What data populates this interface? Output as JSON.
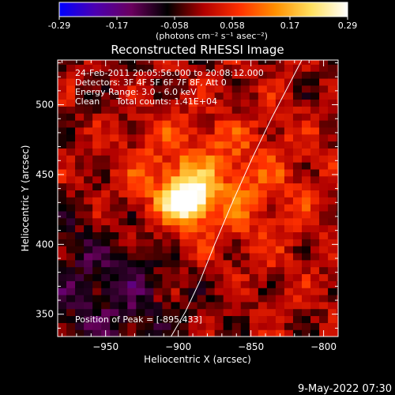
{
  "title": "Reconstructed RHESSI Image",
  "colorbar": {
    "ticks": [
      "-0.29",
      "-0.17",
      "-0.058",
      "0.058",
      "0.17",
      "0.29"
    ],
    "range": [
      -0.29,
      0.29
    ],
    "units": "(photons cm⁻² s⁻¹ asec⁻²)",
    "colormap": [
      "#0000ff",
      "#4c00b0",
      "#6a005e",
      "#000000",
      "#b00000",
      "#ff3000",
      "#ff9000",
      "#ffe060",
      "#ffffff"
    ]
  },
  "info_lines": [
    "24-Feb-2011 20:05:56.000 to 20:08:12.000",
    "Detectors: 3F 4F 5F 6F 7F 8F, Att 0",
    "Energy Range: 3.0 - 6.0 keV",
    "Clean      Total counts: 1.41E+04"
  ],
  "peak_label": "Position of Peak = [-895,433]",
  "footer_date": "9-May-2022 07:30",
  "chart_data": {
    "type": "heatmap",
    "title": "Reconstructed RHESSI Image",
    "xlabel": "Heliocentric X (arcsec)",
    "ylabel": "Heliocentric Y (arcsec)",
    "xlim": [
      -983,
      -790
    ],
    "ylim": [
      334,
      532
    ],
    "x_ticks": [
      -950,
      -900,
      -850,
      -800
    ],
    "y_ticks": [
      350,
      400,
      450,
      500
    ],
    "x_tick_labels": [
      "−950",
      "−900",
      "−850",
      "−800"
    ],
    "y_tick_labels": [
      "350",
      "400",
      "450",
      "500"
    ],
    "peak": {
      "x": -895,
      "y": 433,
      "value": 0.29
    },
    "limb_curve": [
      [
        -905,
        334
      ],
      [
        -895,
        352
      ],
      [
        -885,
        374
      ],
      [
        -875,
        400
      ],
      [
        -862,
        432
      ],
      [
        -849,
        462
      ],
      [
        -836,
        490
      ],
      [
        -824,
        514
      ],
      [
        -815,
        532
      ]
    ]
  }
}
